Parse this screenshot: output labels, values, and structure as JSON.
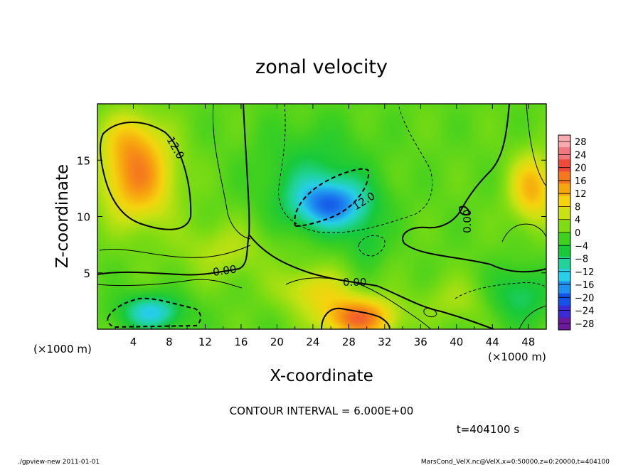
{
  "chart_data": {
    "type": "heatmap",
    "title": "zonal velocity",
    "xlabel": "X-coordinate",
    "ylabel": "Z-coordinate",
    "x_unit_label": "(×1000 m)",
    "y_unit_label": "(×1000 m)",
    "xlim": [
      0,
      50
    ],
    "ylim": [
      0,
      20
    ],
    "x_ticks": [
      4,
      8,
      12,
      16,
      20,
      24,
      28,
      32,
      36,
      40,
      44,
      48
    ],
    "y_ticks": [
      5,
      10,
      15
    ],
    "colorbar": {
      "ticks": [
        28,
        24,
        20,
        16,
        12,
        8,
        4,
        0,
        -4,
        -8,
        -12,
        -16,
        -20,
        -24,
        -28
      ],
      "labels": [
        "28",
        "24",
        "20",
        "16",
        "12",
        "8",
        "4",
        "0",
        "−4",
        "−8",
        "−12",
        "−16",
        "−20",
        "−24",
        "−28"
      ],
      "range": [
        -30,
        30
      ],
      "colors": [
        "#6a1a9a",
        "#3b2bd6",
        "#1552e8",
        "#1f8ff0",
        "#27cfe8",
        "#1fd39a",
        "#18c93a",
        "#3fd020",
        "#7fdc12",
        "#c9e212",
        "#f5d40e",
        "#f7a70e",
        "#f5781e",
        "#f04a3c",
        "#f2767d",
        "#f9aab0"
      ]
    },
    "contour_interval_text": "CONTOUR INTERVAL = 6.000E+00",
    "contour_labels": [
      "12.0",
      "12.0",
      "0.00",
      "0.00",
      "0.00"
    ],
    "fields": [
      {
        "x": 4.5,
        "z": 13.5,
        "value": 16,
        "sx": 4.0,
        "sz": 4.0
      },
      {
        "x": 3.5,
        "z": 17.0,
        "value": 6,
        "sx": 3.0,
        "sz": 2.5
      },
      {
        "x": 26.0,
        "z": 11.0,
        "value": -18,
        "sx": 4.5,
        "sz": 2.3
      },
      {
        "x": 24.0,
        "z": 14.0,
        "value": -6,
        "sx": 6.0,
        "sz": 4.0
      },
      {
        "x": 6.0,
        "z": 1.5,
        "value": -14,
        "sx": 3.5,
        "sz": 1.6
      },
      {
        "x": 29.0,
        "z": 1.0,
        "value": 19,
        "sx": 4.0,
        "sz": 1.8
      },
      {
        "x": 24.0,
        "z": 3.5,
        "value": 8,
        "sx": 4.0,
        "sz": 2.0
      },
      {
        "x": 48.5,
        "z": 12.5,
        "value": 13,
        "sx": 2.5,
        "sz": 3.0
      },
      {
        "x": 47.0,
        "z": 3.0,
        "value": -8,
        "sx": 3.5,
        "sz": 2.5
      },
      {
        "x": 14.0,
        "z": 7.0,
        "value": 5,
        "sx": 5.0,
        "sz": 2.5
      },
      {
        "x": 30.0,
        "z": 7.5,
        "value": -5,
        "sx": 2.0,
        "sz": 2.0
      },
      {
        "x": 40.0,
        "z": 2.5,
        "value": 4,
        "sx": 4.0,
        "sz": 2.0
      }
    ]
  },
  "footer": {
    "time": "t=404100 s",
    "left_note": "./gpview-new   2011-01-01",
    "right_note": "MarsCond_VelX.nc@VelX,x=0:50000,z=0:20000,t=404100"
  }
}
